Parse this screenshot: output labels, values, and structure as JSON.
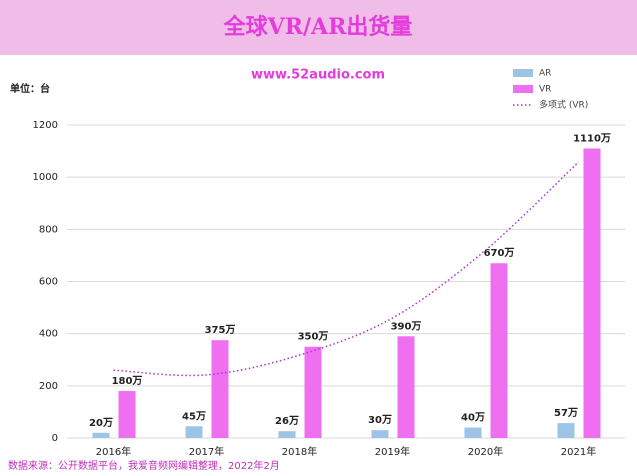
{
  "chart_data": {
    "type": "bar",
    "title": "全球VR/AR出货量",
    "subtitle": "www.52audio.com",
    "y_label": "单位：台",
    "source": "数据来源：公开数据平台，我爱音频网编辑整理，2022年2月",
    "categories": [
      "2016年",
      "2017年",
      "2018年",
      "2019年",
      "2020年",
      "2021年"
    ],
    "series": [
      {
        "name": "AR",
        "color": "#9dc3e6",
        "values": [
          20,
          45,
          26,
          30,
          40,
          57
        ],
        "value_labels": [
          "20万",
          "45万",
          "26万",
          "30万",
          "40万",
          "57万"
        ]
      },
      {
        "name": "VR",
        "color": "#ee6ff0",
        "values": [
          180,
          375,
          350,
          390,
          670,
          1110
        ],
        "value_labels": [
          "180万",
          "375万",
          "350万",
          "390万",
          "670万",
          "1110万"
        ]
      },
      {
        "name": "多项式 (VR)",
        "color": "#b030d0",
        "type": "trend",
        "values": [
          260,
          242,
          318,
          460,
          720,
          1058
        ]
      }
    ],
    "ylim": [
      0,
      1200
    ],
    "yticks": [
      0,
      200,
      400,
      600,
      800,
      1000,
      1200
    ],
    "grid": true,
    "legend": "top-right"
  }
}
